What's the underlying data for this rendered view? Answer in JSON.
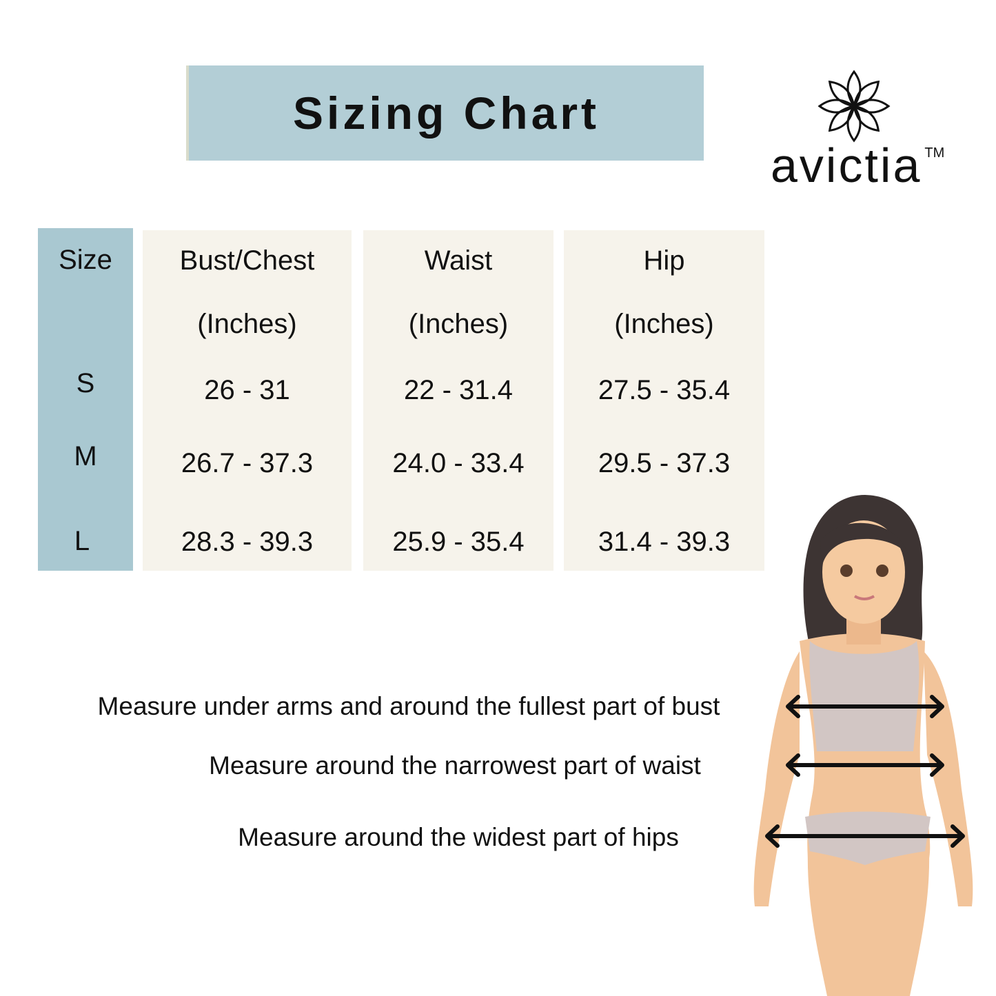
{
  "title": "Sizing Chart",
  "brand": {
    "name": "avictia",
    "trademark": "TM",
    "logo_icon": "lotus-flower-icon"
  },
  "table": {
    "columns": [
      {
        "header": "Size",
        "unit": ""
      },
      {
        "header": "Bust/Chest",
        "unit": "(Inches)"
      },
      {
        "header": "Waist",
        "unit": "(Inches)"
      },
      {
        "header": "Hip",
        "unit": "(Inches)"
      }
    ],
    "rows": [
      {
        "size": "S",
        "bust": "26 - 31",
        "waist": "22 - 31.4",
        "hip": "27.5 - 35.4"
      },
      {
        "size": "M",
        "bust": "26.7 - 37.3",
        "waist": "24.0 - 33.4",
        "hip": "29.5 - 37.3"
      },
      {
        "size": "L",
        "bust": "28.3 - 39.3",
        "waist": "25.9 - 35.4",
        "hip": "31.4 - 39.3"
      }
    ]
  },
  "instructions": {
    "bust": "Measure under arms and around the fullest part of bust",
    "waist": "Measure around the narrowest part of waist",
    "hips": "Measure around the widest part of hips"
  },
  "colors": {
    "title_bg": "#b3ced6",
    "size_col": "#a9c8d1",
    "cell_bg": "#f6f3eb"
  }
}
